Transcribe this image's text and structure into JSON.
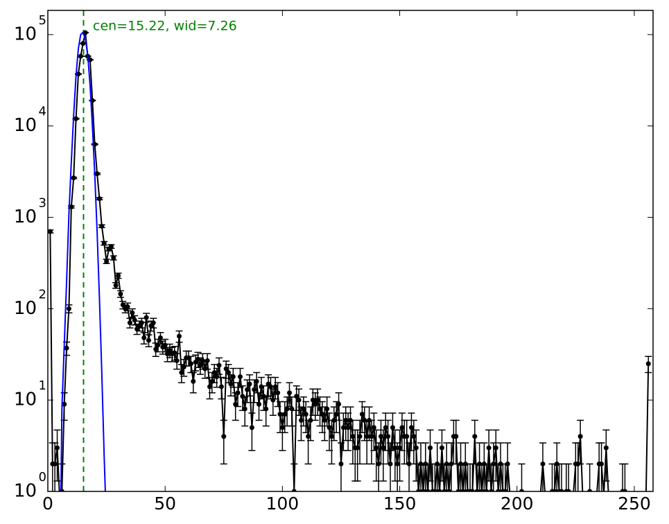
{
  "chart_data": {
    "type": "errorbar",
    "log_y": true,
    "annotation": "cen=15.22, wid=7.26",
    "center": 15.22,
    "center_color": "#008000",
    "xlim": [
      0,
      258
    ],
    "xticks": [
      0,
      50,
      100,
      150,
      200,
      250
    ],
    "ylim": [
      1,
      184000
    ],
    "yticks": [
      {
        "value": 1,
        "label": "10",
        "exponent": "0"
      },
      {
        "value": 10,
        "label": "10",
        "exponent": "1"
      },
      {
        "value": 100,
        "label": "10",
        "exponent": "2"
      },
      {
        "value": 1000,
        "label": "10",
        "exponent": "3"
      },
      {
        "value": 10000,
        "label": "10",
        "exponent": "4"
      },
      {
        "value": 100000,
        "label": "10",
        "exponent": "5"
      }
    ],
    "series": [
      {
        "color": "#000000",
        "x": [
          1,
          2,
          3,
          4,
          5,
          6,
          7,
          8,
          9,
          10,
          11,
          12,
          13,
          14,
          15,
          16,
          17,
          18,
          19,
          20,
          21,
          22,
          23,
          24,
          25,
          26,
          27,
          28,
          29,
          30,
          31,
          32,
          33,
          34,
          35,
          36,
          37,
          38,
          39,
          40,
          41,
          42,
          43,
          44,
          45,
          46,
          47,
          48,
          49,
          50,
          51,
          52,
          53,
          54,
          55,
          56,
          57,
          58,
          59,
          60,
          61,
          62,
          63,
          64,
          65,
          66,
          67,
          68,
          69,
          70,
          71,
          72,
          73,
          74,
          75,
          76,
          77,
          78,
          79,
          80,
          81,
          82,
          83,
          84,
          85,
          86,
          87,
          88,
          89,
          90,
          91,
          92,
          93,
          94,
          95,
          96,
          97,
          98,
          99,
          100,
          101,
          102,
          103,
          104,
          105,
          106,
          107,
          108,
          109,
          110,
          111,
          112,
          113,
          114,
          115,
          116,
          117,
          118,
          119,
          120,
          121,
          122,
          123,
          124,
          125,
          126,
          127,
          128,
          129,
          130,
          131,
          132,
          133,
          134,
          135,
          136,
          137,
          138,
          139,
          140,
          141,
          142,
          143,
          144,
          145,
          146,
          147,
          148,
          149,
          150,
          151,
          152,
          153,
          154,
          155,
          156,
          157,
          158,
          159,
          160,
          161,
          162,
          163,
          164,
          165,
          166,
          167,
          168,
          169,
          170,
          171,
          172,
          173,
          174,
          175,
          176,
          177,
          178,
          179,
          180,
          181,
          182,
          183,
          184,
          185,
          186,
          187,
          188,
          189,
          190,
          191,
          192,
          193,
          194,
          195,
          196,
          197,
          198,
          199,
          200,
          201,
          202,
          203,
          204,
          205,
          206,
          207,
          208,
          209,
          210,
          211,
          212,
          213,
          214,
          215,
          216,
          217,
          218,
          219,
          220,
          221,
          222,
          223,
          224,
          225,
          226,
          227,
          228,
          229,
          230,
          231,
          232,
          233,
          234,
          235,
          236,
          237,
          238,
          239,
          240,
          241,
          242,
          243,
          244,
          245,
          246,
          247,
          248,
          249,
          250,
          251,
          252,
          253,
          254,
          255,
          256
        ],
        "values": [
          700,
          2,
          2,
          3,
          0,
          1,
          9,
          37,
          100,
          1300,
          2700,
          12000,
          37000,
          58000,
          80000,
          105000,
          58000,
          53000,
          19000,
          6300,
          3000,
          1600,
          800,
          520,
          330,
          450,
          480,
          360,
          180,
          230,
          145,
          110,
          100,
          105,
          70,
          90,
          75,
          60,
          65,
          70,
          48,
          80,
          45,
          65,
          70,
          36,
          40,
          48,
          38,
          40,
          32,
          35,
          32,
          33,
          27,
          50,
          20,
          23,
          29,
          29,
          25,
          16,
          26,
          28,
          24,
          27,
          22,
          27,
          14,
          16,
          20,
          18,
          24,
          14,
          4,
          22,
          20,
          15,
          18,
          9,
          12,
          18,
          11,
          8,
          13,
          15,
          5,
          13,
          16,
          9,
          14,
          11,
          8,
          15,
          14,
          10,
          14,
          12,
          7,
          5,
          7,
          8,
          12,
          8,
          1,
          11,
          10,
          6,
          8,
          7,
          4,
          6,
          10,
          9,
          10,
          8,
          7,
          6,
          8,
          5,
          4,
          6,
          7,
          9,
          2,
          5,
          6,
          5,
          6,
          4,
          3,
          3,
          4,
          7,
          6,
          4,
          6,
          4,
          5,
          3,
          2,
          4,
          3,
          5,
          4,
          2,
          5,
          3,
          2,
          3,
          5,
          4,
          4,
          2,
          5,
          4,
          3,
          1,
          2,
          1,
          2,
          1,
          3,
          1,
          1,
          2,
          1,
          3,
          1,
          2,
          1,
          2,
          4,
          4,
          1,
          2,
          1,
          2,
          1,
          1,
          1,
          4,
          1,
          2,
          1,
          2,
          1,
          3,
          1,
          2,
          3,
          1,
          2,
          1,
          1,
          2,
          0,
          0,
          0,
          0,
          0,
          1,
          0,
          0,
          0,
          0,
          0,
          0,
          0,
          0,
          2,
          0,
          0,
          0,
          1,
          1,
          2,
          1,
          1,
          0,
          1,
          1,
          0,
          0,
          2,
          2,
          4,
          0,
          0,
          0,
          1,
          0,
          0,
          0,
          2,
          2,
          0,
          3,
          0,
          0,
          0,
          0,
          0,
          0,
          1,
          1,
          0,
          0,
          0,
          0,
          0,
          0,
          0,
          0,
          0,
          25
        ],
        "errors": [
          26,
          1.4,
          1.4,
          1.7,
          0,
          1,
          3,
          6.1,
          10,
          36,
          52,
          110,
          192,
          241,
          283,
          324,
          241,
          230,
          138,
          79,
          55,
          40,
          28,
          23,
          18,
          21,
          22,
          19,
          13,
          15,
          12,
          10.5,
          10,
          10.2,
          8.4,
          9.5,
          8.7,
          7.7,
          8.1,
          8.4,
          6.9,
          8.9,
          6.7,
          8.1,
          8.4,
          6,
          6.3,
          6.9,
          6.2,
          6.3,
          5.7,
          5.9,
          5.7,
          5.7,
          5.2,
          7.1,
          4.5,
          4.8,
          5.4,
          5.4,
          5,
          4,
          5.1,
          5.3,
          4.9,
          5.2,
          4.7,
          5.2,
          3.7,
          4,
          4.5,
          4.2,
          4.9,
          3.7,
          2,
          4.7,
          4.5,
          3.9,
          4.2,
          3,
          3.5,
          4.2,
          3.3,
          2.8,
          3.6,
          3.9,
          2.2,
          3.6,
          4,
          3,
          3.7,
          3.3,
          2.8,
          3.9,
          3.7,
          3.2,
          3.7,
          3.5,
          2.6,
          2.2,
          2.6,
          2.8,
          3.5,
          2.8,
          1,
          3.3,
          3.2,
          2.4,
          2.8,
          2.6,
          2,
          2.4,
          3.2,
          3,
          3.2,
          2.8,
          2.6,
          2.4,
          2.8,
          2.2,
          2,
          2.4,
          2.6,
          3,
          1.4,
          2.2,
          2.4,
          2.2,
          2.4,
          2,
          1.7,
          1.7,
          2,
          2.6,
          2.4,
          2,
          2.4,
          2,
          2.2,
          1.7,
          1.4,
          2,
          1.7,
          2.2,
          2,
          1.4,
          2.2,
          1.7,
          1.4,
          1.7,
          2.2,
          2,
          2,
          1.4,
          2.2,
          2,
          1.7,
          1,
          1.4,
          1,
          1.4,
          1,
          1.7,
          1,
          1,
          1.4,
          1,
          1.7,
          1,
          1.4,
          1,
          1.4,
          2,
          2,
          1,
          1.4,
          1,
          1.4,
          1,
          1,
          1,
          2,
          1,
          1.4,
          1,
          1.4,
          1,
          1.7,
          1,
          1.4,
          1.7,
          1,
          1.4,
          1,
          1,
          1.4,
          0,
          0,
          0,
          0,
          0,
          1,
          0,
          0,
          0,
          0,
          0,
          0,
          0,
          0,
          1.4,
          0,
          0,
          0,
          1,
          1,
          1.4,
          1,
          1,
          0,
          1,
          1,
          0,
          0,
          1.4,
          1.4,
          2,
          0,
          0,
          0,
          1,
          0,
          0,
          0,
          1.4,
          1.4,
          0,
          1.7,
          0,
          0,
          0,
          0,
          0,
          0,
          1,
          1,
          0,
          0,
          0,
          0,
          0,
          0,
          0,
          0,
          0,
          5
        ]
      },
      {
        "color": "#0000ff",
        "fit": true,
        "x": [
          5.6,
          6,
          7,
          8,
          9,
          10,
          11,
          12,
          13,
          14,
          15,
          16,
          17,
          18,
          19,
          20,
          21,
          22,
          23,
          24,
          24.5
        ],
        "values": [
          1,
          8,
          40,
          200,
          1100,
          4000,
          13000,
          35000,
          70000,
          100000,
          105000,
          90000,
          60000,
          28000,
          10000,
          3000,
          700,
          130,
          20,
          2.5,
          1
        ]
      }
    ]
  }
}
